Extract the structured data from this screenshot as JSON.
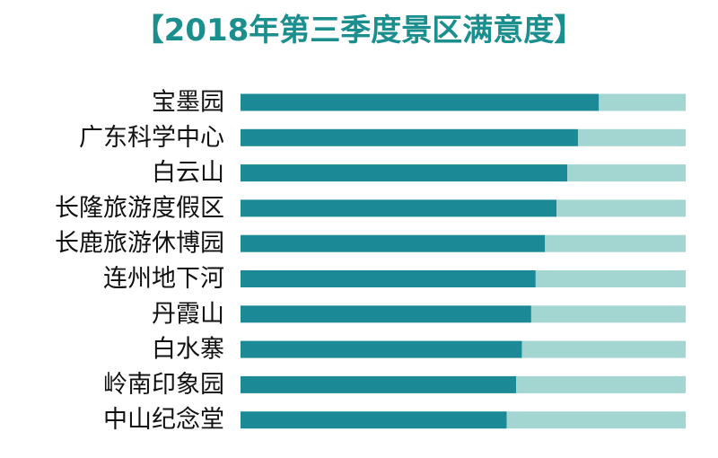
{
  "chart_data": {
    "type": "bar",
    "orientation": "horizontal",
    "stacked": true,
    "title": "【2018年第三季度景区满意度】",
    "categories": [
      "宝墨园",
      "广东科学中心",
      "白云山",
      "长隆旅游度假区",
      "长鹿旅游休博园",
      "连州地下河",
      "丹霞山",
      "白水寨",
      "岭南印象园",
      "中山纪念堂"
    ],
    "series": [
      {
        "values": [
          80.5,
          75.8,
          73.4,
          71.0,
          68.4,
          66.3,
          65.3,
          63.2,
          61.9,
          59.8
        ]
      },
      {
        "values": [
          19.5,
          24.2,
          26.6,
          29.0,
          31.6,
          33.7,
          34.7,
          36.8,
          38.1,
          40.2
        ]
      }
    ],
    "xlim": [
      0,
      100
    ],
    "grid": false,
    "colors": {
      "score": "#1b8a96",
      "remainder": "#a3d6d1",
      "title": "#1a8f8e"
    }
  }
}
